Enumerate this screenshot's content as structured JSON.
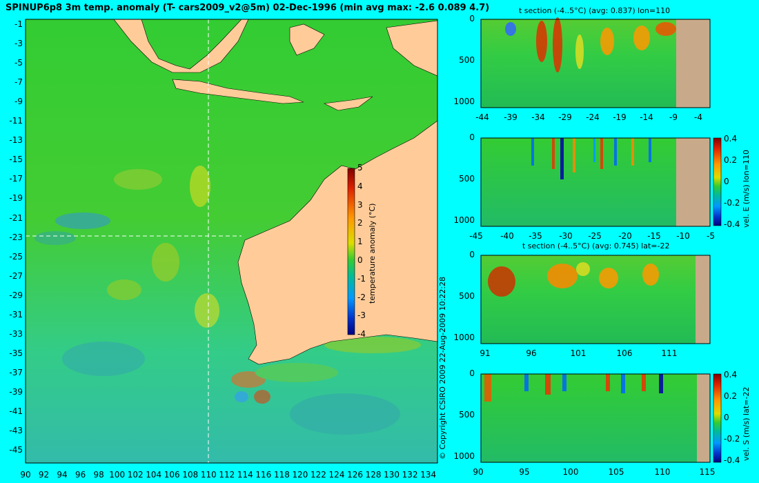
{
  "colors": {
    "background": "#00ffff",
    "land": "#ffcc99",
    "section_land": "#c8aa8a"
  },
  "figure": {
    "title": "SPINUP6p8 3m temp. anomaly (T- cars2009_v2@5m) 02-Dec-1996 (min avg max: -2.6 0.089 4.7)",
    "copyright": "© Copyright CSIRO 2009   22-Aug-2009 10:22:28"
  },
  "chart_data": [
    {
      "type": "heatmap",
      "name": "map",
      "title": "SPINUP6p8 3m temp. anomaly (T- cars2009_v2@5m) 02-Dec-1996 (min avg max: -2.6 0.089 4.7)",
      "xlabel": "",
      "ylabel": "",
      "xlim": [
        90,
        135
      ],
      "ylim": [
        -45,
        0
      ],
      "x_ticks": [
        "90",
        "92",
        "94",
        "96",
        "98",
        "100",
        "102",
        "104",
        "106",
        "108",
        "110",
        "112",
        "114",
        "116",
        "118",
        "120",
        "122",
        "124",
        "126",
        "128",
        "130",
        "132",
        "134"
      ],
      "y_ticks": [
        "-1",
        "-3",
        "-5",
        "-7",
        "-9",
        "-11",
        "-13",
        "-15",
        "-17",
        "-19",
        "-21",
        "-23",
        "-25",
        "-27",
        "-29",
        "-31",
        "-33",
        "-35",
        "-37",
        "-39",
        "-41",
        "-43",
        "-45"
      ],
      "section_lon": 110,
      "section_lat": -22,
      "stats": {
        "min": -2.6,
        "avg": 0.089,
        "max": 4.7
      },
      "colorbar": {
        "label": "temperature anomaly (°C)",
        "range": [
          -4,
          5
        ],
        "ticks": [
          "5",
          "4",
          "3",
          "2",
          "1",
          "0",
          "-1",
          "-2",
          "-3",
          "-4"
        ]
      }
    },
    {
      "type": "heatmap",
      "name": "t-section-lon110",
      "title": "t section (-4..5°C) (avg: 0.837) lon=110",
      "xlim": [
        -45,
        -1
      ],
      "ylim": [
        1050,
        0
      ],
      "x_ticks": [
        "-44",
        "-39",
        "-34",
        "-29",
        "-24",
        "-19",
        "-14",
        "-9",
        "-4"
      ],
      "y_ticks": [
        "0",
        "500",
        "1000"
      ]
    },
    {
      "type": "heatmap",
      "name": "velE-section-lon110",
      "title": "",
      "xlim": [
        -45,
        -2
      ],
      "ylim": [
        1050,
        0
      ],
      "x_ticks": [
        "-45",
        "-40",
        "-35",
        "-30",
        "-25",
        "-20",
        "-15",
        "-10",
        "-5"
      ],
      "y_ticks": [
        "0",
        "500",
        "1000"
      ],
      "colorbar": {
        "label": "vel. E (m/s) lon=110",
        "range": [
          -0.4,
          0.4
        ],
        "ticks": [
          "0.4",
          "0.2",
          "0",
          "-0.2",
          "-0.4"
        ]
      }
    },
    {
      "type": "heatmap",
      "name": "t-section-lat-22",
      "title": "t section (-4..5°C) (avg: 0.745) lat=-22",
      "xlim": [
        89.5,
        115
      ],
      "ylim": [
        1050,
        0
      ],
      "x_ticks": [
        "91",
        "96",
        "101",
        "106",
        "111"
      ],
      "y_ticks": [
        "0",
        "500",
        "1000"
      ]
    },
    {
      "type": "heatmap",
      "name": "velS-section-lat-22",
      "title": "",
      "xlim": [
        89.5,
        115
      ],
      "ylim": [
        1050,
        0
      ],
      "x_ticks": [
        "90",
        "95",
        "100",
        "105",
        "110",
        "115"
      ],
      "y_ticks": [
        "0",
        "500",
        "1000"
      ],
      "colorbar": {
        "label": "vel. S (m/s) lat=-22",
        "range": [
          -0.4,
          0.4
        ],
        "ticks": [
          "0.4",
          "0.2",
          "0",
          "-0.2",
          "-0.4"
        ]
      }
    }
  ]
}
